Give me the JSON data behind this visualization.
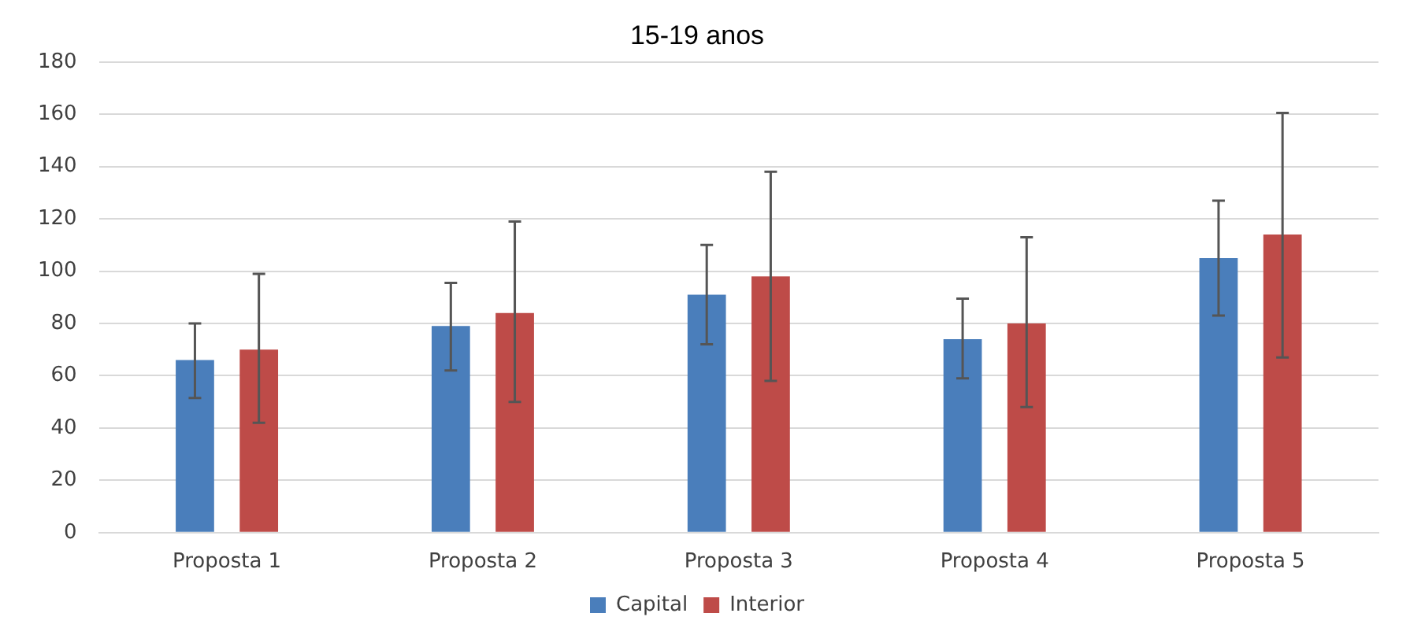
{
  "chart_data": {
    "type": "bar",
    "title": "15-19 anos",
    "categories": [
      "Proposta 1",
      "Proposta 2",
      "Proposta 3",
      "Proposta 4",
      "Proposta 5"
    ],
    "series": [
      {
        "name": "Capital",
        "color": "#4a7ebb",
        "values": [
          66,
          79,
          91,
          74,
          105
        ],
        "errors": [
          [
            51.5,
            80
          ],
          [
            62,
            95.5
          ],
          [
            72,
            110
          ],
          [
            59,
            89.5
          ],
          [
            83,
            127
          ]
        ]
      },
      {
        "name": "Interior",
        "color": "#be4b48",
        "values": [
          70,
          84,
          98,
          80,
          114
        ],
        "errors": [
          [
            42,
            99
          ],
          [
            50,
            119
          ],
          [
            58,
            138
          ],
          [
            48,
            113
          ],
          [
            67,
            160.5
          ]
        ]
      }
    ],
    "ylim": [
      0,
      180
    ],
    "yticks": [
      0,
      20,
      40,
      60,
      80,
      100,
      120,
      140,
      160,
      180
    ],
    "grid": "y",
    "legend": "bottom"
  }
}
